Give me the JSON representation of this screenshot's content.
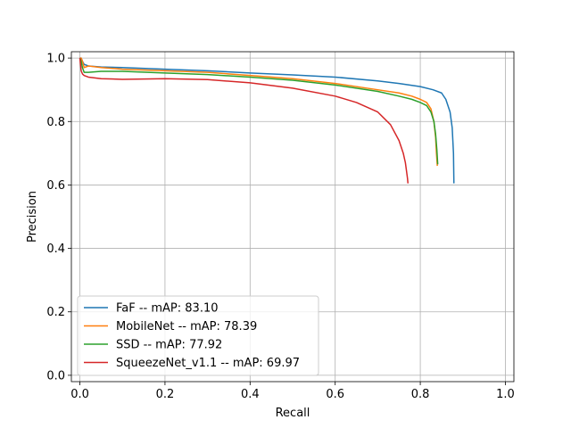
{
  "chart_data": {
    "type": "line",
    "title": "",
    "xlabel": "Recall",
    "ylabel": "Precision",
    "xlim": [
      -0.02,
      1.02
    ],
    "ylim": [
      -0.02,
      1.02
    ],
    "xticks": [
      0.0,
      0.2,
      0.4,
      0.6,
      0.8,
      1.0
    ],
    "xtick_labels": [
      "0.0",
      "0.2",
      "0.4",
      "0.6",
      "0.8",
      "1.0"
    ],
    "yticks": [
      0.0,
      0.2,
      0.4,
      0.6,
      0.8,
      1.0
    ],
    "ytick_labels": [
      "0.0",
      "0.2",
      "0.4",
      "0.6",
      "0.8",
      "1.0"
    ],
    "grid": true,
    "legend_position": "lower-left",
    "series": [
      {
        "name": "FaF -- mAP: 83.10",
        "color": "#1f77b4",
        "x": [
          0.0,
          0.003,
          0.006,
          0.01,
          0.02,
          0.05,
          0.1,
          0.2,
          0.3,
          0.4,
          0.5,
          0.6,
          0.7,
          0.75,
          0.8,
          0.83,
          0.85,
          0.86,
          0.87,
          0.875,
          0.878,
          0.879
        ],
        "y": [
          1.0,
          1.0,
          0.99,
          0.98,
          0.975,
          0.972,
          0.97,
          0.965,
          0.96,
          0.953,
          0.947,
          0.94,
          0.928,
          0.92,
          0.91,
          0.9,
          0.89,
          0.87,
          0.83,
          0.78,
          0.7,
          0.605
        ]
      },
      {
        "name": "MobileNet -- mAP: 78.39",
        "color": "#ff7f0e",
        "x": [
          0.0,
          0.003,
          0.006,
          0.01,
          0.02,
          0.05,
          0.1,
          0.2,
          0.3,
          0.4,
          0.5,
          0.6,
          0.7,
          0.75,
          0.78,
          0.8,
          0.815,
          0.825,
          0.832,
          0.836,
          0.838,
          0.84
        ],
        "y": [
          1.0,
          1.0,
          0.99,
          0.97,
          0.975,
          0.97,
          0.965,
          0.96,
          0.955,
          0.945,
          0.935,
          0.92,
          0.9,
          0.89,
          0.88,
          0.87,
          0.86,
          0.84,
          0.8,
          0.75,
          0.7,
          0.66
        ]
      },
      {
        "name": "SSD -- mAP: 77.92",
        "color": "#2ca02c",
        "x": [
          0.0,
          0.003,
          0.006,
          0.01,
          0.02,
          0.05,
          0.1,
          0.2,
          0.3,
          0.4,
          0.5,
          0.6,
          0.7,
          0.75,
          0.78,
          0.8,
          0.815,
          0.825,
          0.832,
          0.836,
          0.839,
          0.841
        ],
        "y": [
          1.0,
          0.99,
          0.97,
          0.955,
          0.955,
          0.958,
          0.958,
          0.953,
          0.948,
          0.94,
          0.93,
          0.915,
          0.895,
          0.88,
          0.87,
          0.86,
          0.85,
          0.83,
          0.8,
          0.76,
          0.71,
          0.665
        ]
      },
      {
        "name": "SqueezeNet_v1.1 -- mAP: 69.97",
        "color": "#d62728",
        "x": [
          0.0,
          0.003,
          0.006,
          0.01,
          0.02,
          0.05,
          0.1,
          0.2,
          0.3,
          0.4,
          0.5,
          0.6,
          0.65,
          0.7,
          0.73,
          0.75,
          0.76,
          0.765,
          0.768,
          0.77,
          0.771
        ],
        "y": [
          1.0,
          0.96,
          0.95,
          0.945,
          0.94,
          0.935,
          0.933,
          0.935,
          0.932,
          0.922,
          0.905,
          0.88,
          0.86,
          0.83,
          0.79,
          0.74,
          0.7,
          0.67,
          0.64,
          0.62,
          0.605
        ]
      }
    ]
  }
}
